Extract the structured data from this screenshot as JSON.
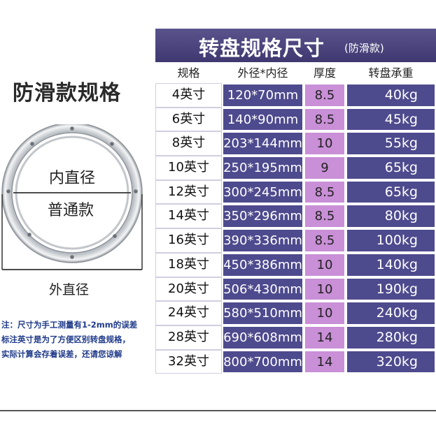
{
  "left": {
    "title": "防滑款规格",
    "inner_label": "内直径",
    "normal_label": "普通款",
    "outer_label": "外直径",
    "note_lines": [
      "注：尺寸为手工测量有1-2mm的误差",
      "标注英寸是为了方便区别转盘规格，",
      "实际计算会存着误差，还请您谅解"
    ]
  },
  "table": {
    "title": "转盘规格尺寸",
    "subtitle": "(防滑款)",
    "headers": [
      "规格",
      "外径*内径",
      "厚度",
      "转盘承重"
    ],
    "rows": [
      [
        "4英寸",
        "120*70mm",
        "8.5",
        "40kg"
      ],
      [
        "6英寸",
        "140*90mm",
        "8.5",
        "45kg"
      ],
      [
        "8英寸",
        "203*144mm",
        "10",
        "55kg"
      ],
      [
        "10英寸",
        "250*195mm",
        "9",
        "65kg"
      ],
      [
        "12英寸",
        "300*245mm",
        "8.5",
        "65kg"
      ],
      [
        "14英寸",
        "350*296mm",
        "8.5",
        "80kg"
      ],
      [
        "16英寸",
        "390*336mm",
        "8.5",
        "100kg"
      ],
      [
        "18英寸",
        "450*386mm",
        "10",
        "140kg"
      ],
      [
        "20英寸",
        "506*430mm",
        "10",
        "190kg"
      ],
      [
        "24英寸",
        "580*510mm",
        "10",
        "240kg"
      ],
      [
        "28英寸",
        "690*608mm",
        "14",
        "280kg"
      ],
      [
        "32英寸",
        "800*700mm",
        "14",
        "320kg"
      ]
    ]
  },
  "colors": {
    "header_bg": "#4d4680",
    "cell_dark": "#4e4a8e",
    "cell_purple": "#c98fd7",
    "note_text": "#1f3a8a"
  }
}
